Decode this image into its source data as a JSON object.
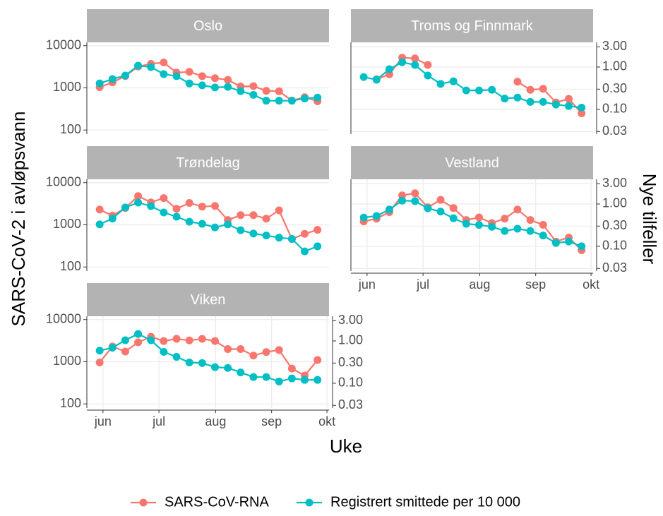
{
  "chart_data": [
    {
      "type": "line",
      "title": "Oslo",
      "x": [
        22,
        23,
        24,
        25,
        26,
        27,
        28,
        29,
        30,
        31,
        32,
        33,
        34,
        35,
        36,
        37,
        38,
        39
      ],
      "xlim": [
        21,
        39.9
      ],
      "ylim": [
        80,
        12000
      ],
      "y2lim": [
        0.026,
        3.83
      ],
      "y_scale": "log",
      "grid": true,
      "yticks": [
        100,
        1000,
        10000
      ],
      "series": [
        {
          "name": "SARS-CoV-RNA",
          "color": "#F8766D",
          "values": [
            1040,
            1350,
            1900,
            3200,
            3700,
            4000,
            2300,
            2400,
            1900,
            1700,
            1550,
            1080,
            1100,
            850,
            830,
            500,
            600,
            480
          ]
        },
        {
          "name": "Registrert smittede per 10 000",
          "color": "#00BFC4",
          "axis": "y2",
          "values": [
            0.41,
            0.52,
            0.63,
            1.08,
            1.0,
            0.68,
            0.61,
            0.41,
            0.37,
            0.33,
            0.34,
            0.27,
            0.22,
            0.16,
            0.16,
            0.16,
            0.18,
            0.19
          ]
        }
      ]
    },
    {
      "type": "line",
      "title": "Troms og Finnmark",
      "x": [
        22,
        23,
        24,
        25,
        26,
        27,
        28,
        29,
        30,
        31,
        32,
        33,
        34,
        35,
        36,
        37,
        38,
        39
      ],
      "xlim": [
        21,
        39.9
      ],
      "ylim": [
        80,
        12000
      ],
      "y2lim": [
        0.026,
        3.83
      ],
      "y_scale": "log",
      "grid": true,
      "y2ticks": [
        {
          "value": 0.03,
          "label": "0.03"
        },
        {
          "value": 0.1,
          "label": "0.10"
        },
        {
          "value": 0.3,
          "label": "0.30"
        },
        {
          "value": 1,
          "label": "1.00"
        },
        {
          "value": 3,
          "label": "3.00"
        }
      ],
      "series": [
        {
          "name": "SARS-CoV-RNA",
          "color": "#F8766D",
          "values": [
            null,
            1600,
            2100,
            5200,
            5000,
            3500,
            null,
            null,
            null,
            null,
            null,
            null,
            1400,
            900,
            950,
            450,
            550,
            250
          ]
        },
        {
          "name": "Registrert smittede per 10 000",
          "color": "#00BFC4",
          "axis": "y2",
          "values": [
            0.58,
            0.5,
            0.89,
            1.3,
            1.12,
            0.63,
            0.4,
            0.46,
            0.28,
            0.28,
            0.29,
            0.18,
            0.19,
            0.15,
            0.15,
            0.13,
            0.12,
            0.11
          ]
        }
      ]
    },
    {
      "type": "line",
      "title": "Trøndelag",
      "x": [
        22,
        23,
        24,
        25,
        26,
        27,
        28,
        29,
        30,
        31,
        32,
        33,
        34,
        35,
        36,
        37,
        38,
        39
      ],
      "xlim": [
        21,
        39.9
      ],
      "ylim": [
        80,
        12000
      ],
      "y2lim": [
        0.026,
        3.83
      ],
      "y_scale": "log",
      "grid": true,
      "yticks": [
        100,
        1000,
        10000
      ],
      "series": [
        {
          "name": "SARS-CoV-RNA",
          "color": "#F8766D",
          "values": [
            2300,
            1650,
            2500,
            4800,
            3400,
            4300,
            2400,
            3300,
            2700,
            2800,
            1300,
            1700,
            1700,
            1400,
            2200,
            460,
            610,
            760
          ]
        },
        {
          "name": "Registrert smittede per 10 000",
          "color": "#00BFC4",
          "axis": "y2",
          "values": [
            0.33,
            0.45,
            0.83,
            1.08,
            0.89,
            0.63,
            0.5,
            0.38,
            0.34,
            0.28,
            0.33,
            0.24,
            0.2,
            0.18,
            0.16,
            0.15,
            0.076,
            0.1
          ]
        }
      ]
    },
    {
      "type": "line",
      "title": "Vestland",
      "x": [
        22,
        23,
        24,
        25,
        26,
        27,
        28,
        29,
        30,
        31,
        32,
        33,
        34,
        35,
        36,
        37,
        38,
        39
      ],
      "xlim": [
        21,
        39.9
      ],
      "ylim": [
        80,
        12000
      ],
      "y2lim": [
        0.026,
        3.83
      ],
      "y_scale": "log",
      "grid": true,
      "y2ticks": [
        {
          "value": 0.03,
          "label": "0.03"
        },
        {
          "value": 0.1,
          "label": "0.10"
        },
        {
          "value": 0.3,
          "label": "0.30"
        },
        {
          "value": 1,
          "label": "1.00"
        },
        {
          "value": 3,
          "label": "3.00"
        }
      ],
      "xticks": [
        {
          "value": 22.26,
          "label": "jun"
        },
        {
          "value": 26.63,
          "label": "jul"
        },
        {
          "value": 31.05,
          "label": "aug"
        },
        {
          "value": 35.42,
          "label": "sep"
        },
        {
          "value": 39.74,
          "label": "okt"
        }
      ],
      "series": [
        {
          "name": "SARS-CoV-RNA",
          "color": "#F8766D",
          "values": [
            1200,
            1400,
            2000,
            5000,
            5600,
            2600,
            3900,
            2500,
            1300,
            1500,
            1100,
            1400,
            2300,
            1300,
            1000,
            400,
            500,
            250
          ]
        },
        {
          "name": "Registrert smittede per 10 000",
          "color": "#00BFC4",
          "axis": "y2",
          "values": [
            0.48,
            0.52,
            0.74,
            1.2,
            1.17,
            0.79,
            0.66,
            0.46,
            0.34,
            0.32,
            0.29,
            0.23,
            0.26,
            0.23,
            0.18,
            0.12,
            0.13,
            0.1
          ]
        }
      ]
    },
    {
      "type": "line",
      "title": "Viken",
      "x": [
        22,
        23,
        24,
        25,
        26,
        27,
        28,
        29,
        30,
        31,
        32,
        33,
        34,
        35,
        36,
        37,
        38,
        39
      ],
      "xlim": [
        21,
        39.9
      ],
      "ylim": [
        80,
        12000
      ],
      "y2lim": [
        0.026,
        3.83
      ],
      "y_scale": "log",
      "grid": true,
      "yticks": [
        100,
        1000,
        10000
      ],
      "y2ticks": [
        {
          "value": 0.03,
          "label": "0.03"
        },
        {
          "value": 0.1,
          "label": "0.10"
        },
        {
          "value": 0.3,
          "label": "0.30"
        },
        {
          "value": 1,
          "label": "1.00"
        },
        {
          "value": 3,
          "label": "3.00"
        }
      ],
      "xticks": [
        {
          "value": 22.26,
          "label": "jun"
        },
        {
          "value": 26.63,
          "label": "jul"
        },
        {
          "value": 31.05,
          "label": "aug"
        },
        {
          "value": 35.42,
          "label": "sep"
        },
        {
          "value": 39.74,
          "label": "okt"
        }
      ],
      "series": [
        {
          "name": "SARS-CoV-RNA",
          "color": "#F8766D",
          "values": [
            960,
            2300,
            1750,
            2900,
            3900,
            3100,
            3500,
            3200,
            3500,
            3100,
            2000,
            2000,
            1400,
            1700,
            1900,
            690,
            470,
            1100
          ]
        },
        {
          "name": "Registrert smittede per 10 000",
          "color": "#00BFC4",
          "axis": "y2",
          "values": [
            0.59,
            0.69,
            1.04,
            1.46,
            1.04,
            0.55,
            0.42,
            0.31,
            0.3,
            0.24,
            0.23,
            0.18,
            0.14,
            0.14,
            0.11,
            0.13,
            0.12,
            0.12
          ]
        }
      ]
    }
  ],
  "axis_titles": {
    "y": "SARS-CoV-2 i avløpsvann",
    "y2": "Nye tilfeller",
    "x": "Uke"
  }
}
